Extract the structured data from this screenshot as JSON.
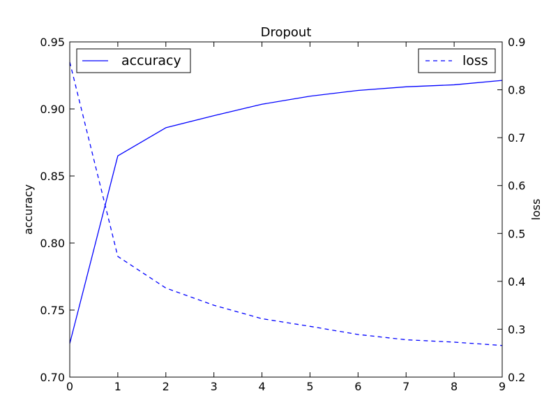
{
  "chart_data": {
    "type": "line",
    "title": "Dropout",
    "xlabel": "",
    "ylabel": "accuracy",
    "y2label": "loss",
    "x": [
      0,
      1,
      2,
      3,
      4,
      5,
      6,
      7,
      8,
      9
    ],
    "xlim": [
      0,
      9
    ],
    "ylim": [
      0.7,
      0.95
    ],
    "y2lim": [
      0.2,
      0.9
    ],
    "x_ticks": [
      "0",
      "1",
      "2",
      "3",
      "4",
      "5",
      "6",
      "7",
      "8",
      "9"
    ],
    "y_ticks": [
      "0.70",
      "0.75",
      "0.80",
      "0.85",
      "0.90",
      "0.95"
    ],
    "y2_ticks": [
      "0.2",
      "0.3",
      "0.4",
      "0.5",
      "0.6",
      "0.7",
      "0.8",
      "0.9"
    ],
    "grid": false,
    "series": [
      {
        "name": "accuracy",
        "axis": "left",
        "style": "solid",
        "color": "#0000ff",
        "legend_position": "top-left",
        "values": [
          0.725,
          0.865,
          0.886,
          0.895,
          0.9035,
          0.9095,
          0.9138,
          0.9165,
          0.918,
          0.9213
        ]
      },
      {
        "name": "loss",
        "axis": "right",
        "style": "dashed",
        "color": "#0000ff",
        "legend_position": "top-right",
        "values": [
          0.858,
          0.452,
          0.386,
          0.35,
          0.322,
          0.306,
          0.289,
          0.278,
          0.273,
          0.266
        ]
      }
    ]
  }
}
